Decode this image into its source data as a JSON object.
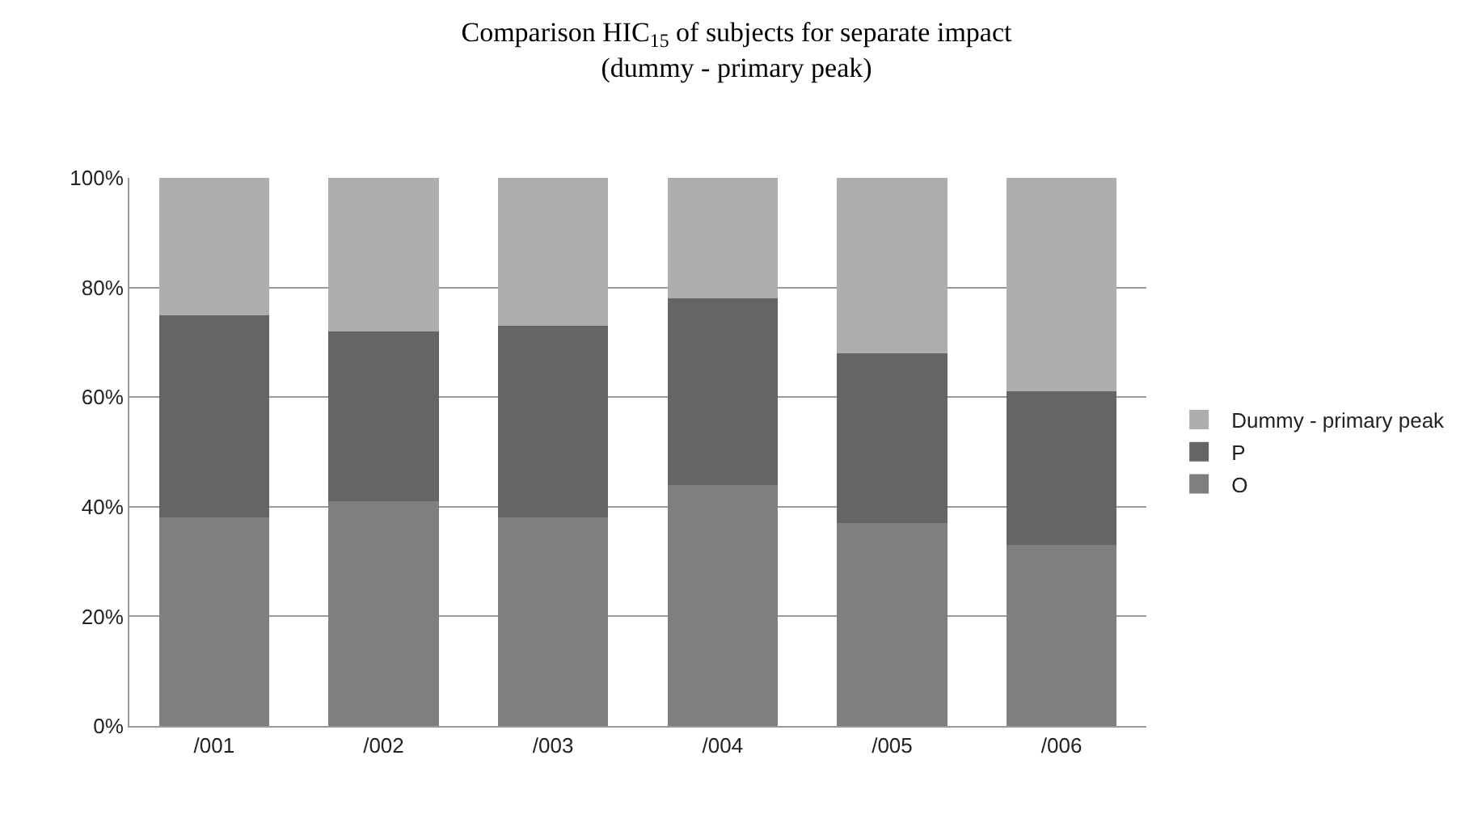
{
  "chart_data": {
    "type": "bar",
    "stacked": true,
    "title": "Comparison HIC$_{15}$ of subjects for separate impact\n(dummy - primary peak)",
    "categories": [
      "/001",
      "/002",
      "/003",
      "/004",
      "/005",
      "/006"
    ],
    "series": [
      {
        "name": "O",
        "color": "#7f7f7f",
        "values": [
          38,
          41,
          38,
          44,
          37,
          33
        ]
      },
      {
        "name": "P",
        "color": "#656565",
        "values": [
          37,
          31,
          35,
          34,
          31,
          28
        ]
      },
      {
        "name": "Dummy - primary peak",
        "color": "#aeaeae",
        "values": [
          25,
          28,
          27,
          22,
          32,
          39
        ]
      }
    ],
    "ylim": [
      0,
      100
    ],
    "yticks": [
      {
        "value": 0,
        "label": "0%"
      },
      {
        "value": 20,
        "label": "20%"
      },
      {
        "value": 40,
        "label": "40%"
      },
      {
        "value": 60,
        "label": "60%"
      },
      {
        "value": 80,
        "label": "80%"
      },
      {
        "value": 100,
        "label": "100%"
      }
    ],
    "grid": "y",
    "legend": "right"
  }
}
